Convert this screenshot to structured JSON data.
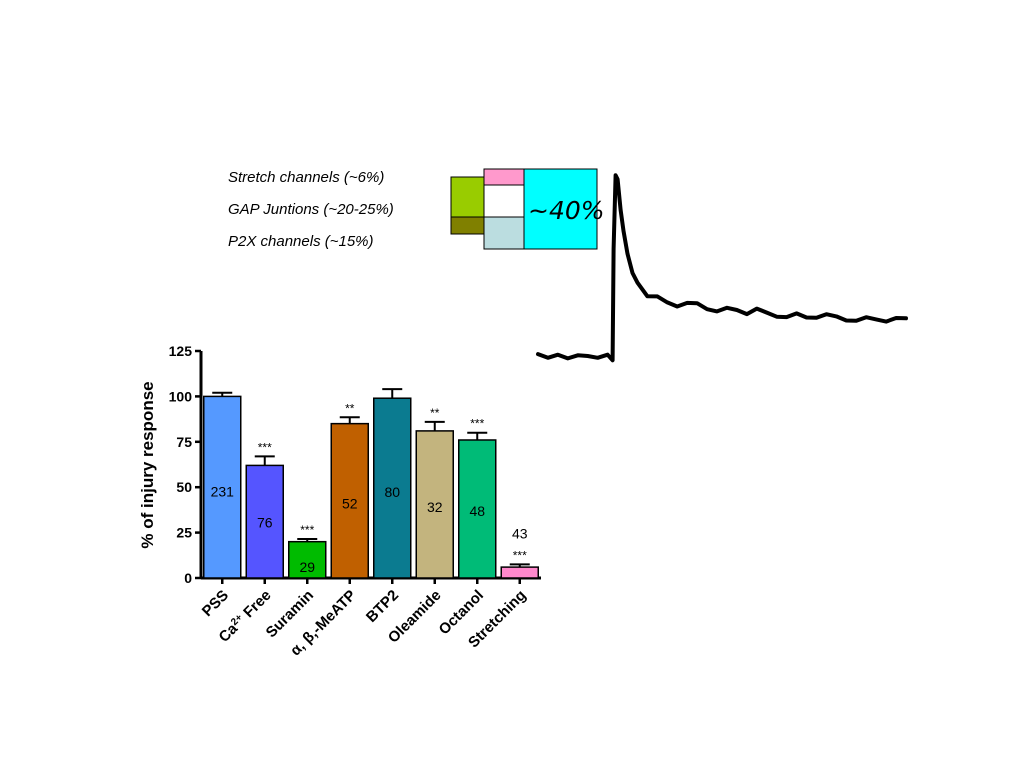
{
  "legend": {
    "items": [
      {
        "label": "Stretch channels (~6%)",
        "color": "#FF99CC"
      },
      {
        "label": "GAP Juntions (~20-25%)",
        "color": "#99CC00"
      },
      {
        "label": "P2X channels (~15%)",
        "color": "#808000"
      }
    ],
    "extra_colors": {
      "light_blue": "#BBDDE0",
      "cyan": "#00FFFF"
    },
    "big_label": "~40%"
  },
  "chart_data": [
    {
      "type": "bar",
      "title": "",
      "xlabel": "",
      "ylabel": "% of injury response",
      "ylim": [
        0,
        125
      ],
      "yticks": [
        0,
        25,
        50,
        75,
        100,
        125
      ],
      "categories": [
        "PSS",
        "Ca2+ Free",
        "Suramin",
        "α, β,-MeATP",
        "BTP2",
        "Oleamide",
        "Octanol",
        "Stretching"
      ],
      "category_display": [
        {
          "main": "PSS"
        },
        {
          "pre": "Ca",
          "sup": "2+",
          "post": " Free"
        },
        {
          "main": "Suramin"
        },
        {
          "main": "α, β,-MeATP"
        },
        {
          "main": "BTP2"
        },
        {
          "main": "Oleamide"
        },
        {
          "main": "Octanol"
        },
        {
          "main": "Stretching"
        }
      ],
      "values": [
        100,
        62,
        20,
        85,
        99,
        81,
        76,
        6
      ],
      "errors": [
        2,
        5,
        1.5,
        3.5,
        5,
        5,
        4,
        1.5
      ],
      "n": [
        "231",
        "76",
        "29",
        "52",
        "80",
        "32",
        "48",
        "43"
      ],
      "significance": [
        "",
        "***",
        "***",
        "**",
        "",
        "**",
        "***",
        "***"
      ],
      "colors": [
        "#5599FF",
        "#5555FF",
        "#00BB00",
        "#C06000",
        "#0B7B90",
        "#C3B47E",
        "#00BB77",
        "#FF88CC"
      ],
      "grid": false
    },
    {
      "type": "line",
      "title": "",
      "xlabel": "",
      "ylabel": "",
      "description_values": {
        "baseline": 0,
        "peak": 1,
        "plateau_start": 0.33,
        "plateau_end": 0.22
      },
      "x": [
        0,
        10,
        20,
        30,
        40,
        50,
        60,
        70,
        75,
        76,
        78,
        80,
        83,
        86,
        90,
        95,
        100,
        110,
        120,
        130,
        140,
        150,
        160,
        170,
        180,
        190,
        200,
        210,
        220,
        230,
        240,
        250,
        260,
        270,
        280,
        290,
        300,
        310,
        320,
        330,
        340,
        350,
        360,
        370
      ],
      "y": [
        0.03,
        0.02,
        0.03,
        0.02,
        0.03,
        0.02,
        0.02,
        0.03,
        0.01,
        0.6,
        1.0,
        0.95,
        0.8,
        0.7,
        0.55,
        0.46,
        0.42,
        0.36,
        0.33,
        0.31,
        0.3,
        0.29,
        0.3,
        0.28,
        0.28,
        0.27,
        0.27,
        0.26,
        0.26,
        0.25,
        0.24,
        0.25,
        0.24,
        0.23,
        0.24,
        0.23,
        0.23,
        0.22,
        0.23,
        0.22,
        0.22,
        0.22,
        0.21,
        0.22
      ]
    }
  ]
}
